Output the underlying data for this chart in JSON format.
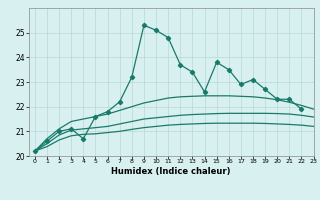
{
  "title": "",
  "xlabel": "Humidex (Indice chaleur)",
  "x": [
    0,
    1,
    2,
    3,
    4,
    5,
    6,
    7,
    8,
    9,
    10,
    11,
    12,
    13,
    14,
    15,
    16,
    17,
    18,
    19,
    20,
    21,
    22,
    23
  ],
  "y_main": [
    20.2,
    20.6,
    21.0,
    21.1,
    20.7,
    21.6,
    21.8,
    22.2,
    23.2,
    25.3,
    25.1,
    24.8,
    23.7,
    23.4,
    22.6,
    23.8,
    23.5,
    22.9,
    23.1,
    22.7,
    22.3,
    22.3,
    21.9,
    null
  ],
  "y_smooth1": [
    20.2,
    20.7,
    21.1,
    21.4,
    21.5,
    21.6,
    21.7,
    21.85,
    22.0,
    22.15,
    22.25,
    22.35,
    22.4,
    22.42,
    22.44,
    22.44,
    22.44,
    22.42,
    22.4,
    22.35,
    22.28,
    22.18,
    22.05,
    21.9
  ],
  "y_smooth2": [
    20.2,
    20.5,
    20.85,
    21.05,
    21.1,
    21.15,
    21.2,
    21.3,
    21.4,
    21.5,
    21.55,
    21.6,
    21.65,
    21.68,
    21.7,
    21.72,
    21.73,
    21.73,
    21.73,
    21.73,
    21.72,
    21.7,
    21.65,
    21.58
  ],
  "y_smooth3": [
    20.2,
    20.38,
    20.65,
    20.82,
    20.88,
    20.9,
    20.95,
    21.0,
    21.08,
    21.15,
    21.2,
    21.25,
    21.28,
    21.3,
    21.32,
    21.33,
    21.33,
    21.33,
    21.33,
    21.32,
    21.3,
    21.28,
    21.25,
    21.2
  ],
  "line_color": "#1a7a6a",
  "bg_color": "#d8f0f0",
  "grid_color": "#b8d8d8",
  "ylim": [
    20,
    26
  ],
  "xlim": [
    -0.5,
    23
  ],
  "yticks": [
    20,
    21,
    22,
    23,
    24,
    25
  ],
  "xticks": [
    0,
    1,
    2,
    3,
    4,
    5,
    6,
    7,
    8,
    9,
    10,
    11,
    12,
    13,
    14,
    15,
    16,
    17,
    18,
    19,
    20,
    21,
    22,
    23
  ]
}
